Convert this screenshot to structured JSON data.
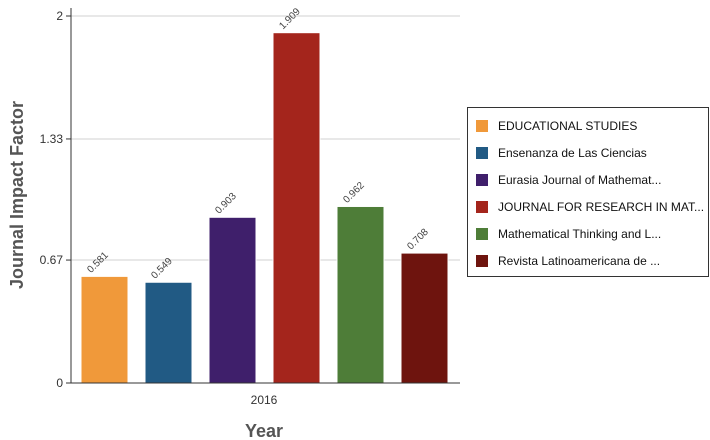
{
  "chart_data": {
    "type": "bar",
    "title": "",
    "xlabel": "Year",
    "ylabel": "Journal Impact Factor",
    "categories": [
      "2016"
    ],
    "ylim": [
      0,
      2
    ],
    "yticks": [
      0,
      0.67,
      1.33,
      2
    ],
    "ytick_labels": [
      "0",
      "0.67",
      "1.33",
      "2"
    ],
    "grid": true,
    "legend_position": "right",
    "series": [
      {
        "name": "EDUCATIONAL STUDIES",
        "values": [
          0.581
        ],
        "label": "0.581",
        "color": "#f0993a"
      },
      {
        "name": "Ensenanza de Las Ciencias",
        "values": [
          0.549
        ],
        "label": "0.549",
        "color": "#215a84"
      },
      {
        "name": "Eurasia Journal of Mathemat...",
        "values": [
          0.903
        ],
        "label": "0.903",
        "color": "#3f1f6b"
      },
      {
        "name": "JOURNAL FOR RESEARCH IN MAT...",
        "values": [
          1.909
        ],
        "label": "1.909",
        "color": "#a4251c"
      },
      {
        "name": "Mathematical Thinking and L...",
        "values": [
          0.962
        ],
        "label": "0.962",
        "color": "#4e7d38"
      },
      {
        "name": "Revista Latinoamericana de ...",
        "values": [
          0.708
        ],
        "label": "0.708",
        "color": "#6e140e"
      }
    ]
  }
}
